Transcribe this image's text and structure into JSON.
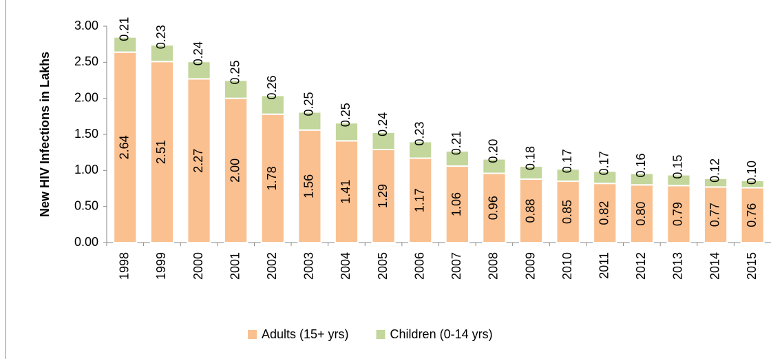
{
  "chart_data": {
    "type": "stacked_bar",
    "y_label": "New HIV Infections in Lakhs",
    "categories": [
      "1998",
      "1999",
      "2000",
      "2001",
      "2002",
      "2003",
      "2004",
      "2005",
      "2006",
      "2007",
      "2008",
      "2009",
      "2010",
      "2011",
      "2012",
      "2013",
      "2014",
      "2015"
    ],
    "series": [
      {
        "name": "Adults (15+ yrs)",
        "color": "#fac090",
        "values": [
          2.64,
          2.51,
          2.27,
          2.0,
          1.78,
          1.56,
          1.41,
          1.29,
          1.17,
          1.06,
          0.96,
          0.88,
          0.85,
          0.82,
          0.8,
          0.79,
          0.77,
          0.76
        ],
        "value_labels": [
          "2.64",
          "2.51",
          "2.27",
          "2.00",
          "1.78",
          "1.56",
          "1.41",
          "1.29",
          "1.17",
          "1.06",
          "0.96",
          "0.88",
          "0.85",
          "0.82",
          "0.80",
          "0.79",
          "0.77",
          "0.76"
        ]
      },
      {
        "name": "Children (0-14 yrs)",
        "color": "#c3d69b",
        "values": [
          0.21,
          0.23,
          0.24,
          0.25,
          0.26,
          0.25,
          0.25,
          0.24,
          0.23,
          0.21,
          0.2,
          0.18,
          0.17,
          0.17,
          0.16,
          0.15,
          0.12,
          0.1
        ],
        "value_labels": [
          "0.21",
          "0.23",
          "0.24",
          "0.25",
          "0.26",
          "0.25",
          "0.25",
          "0.24",
          "0.23",
          "0.21",
          "0.20",
          "0.18",
          "0.17",
          "0.17",
          "0.16",
          "0.15",
          "0.12",
          "0.10"
        ]
      }
    ],
    "ylim": [
      0,
      3
    ],
    "yticks": [
      {
        "value": 0,
        "label": "0.00"
      },
      {
        "value": 0.5,
        "label": "0.50"
      },
      {
        "value": 1,
        "label": "1.00"
      },
      {
        "value": 1.5,
        "label": "1.50"
      },
      {
        "value": 2,
        "label": "2.00"
      },
      {
        "value": 2.5,
        "label": "2.50"
      },
      {
        "value": 3,
        "label": "3.00"
      }
    ],
    "grid": false,
    "legend": "bottom"
  }
}
